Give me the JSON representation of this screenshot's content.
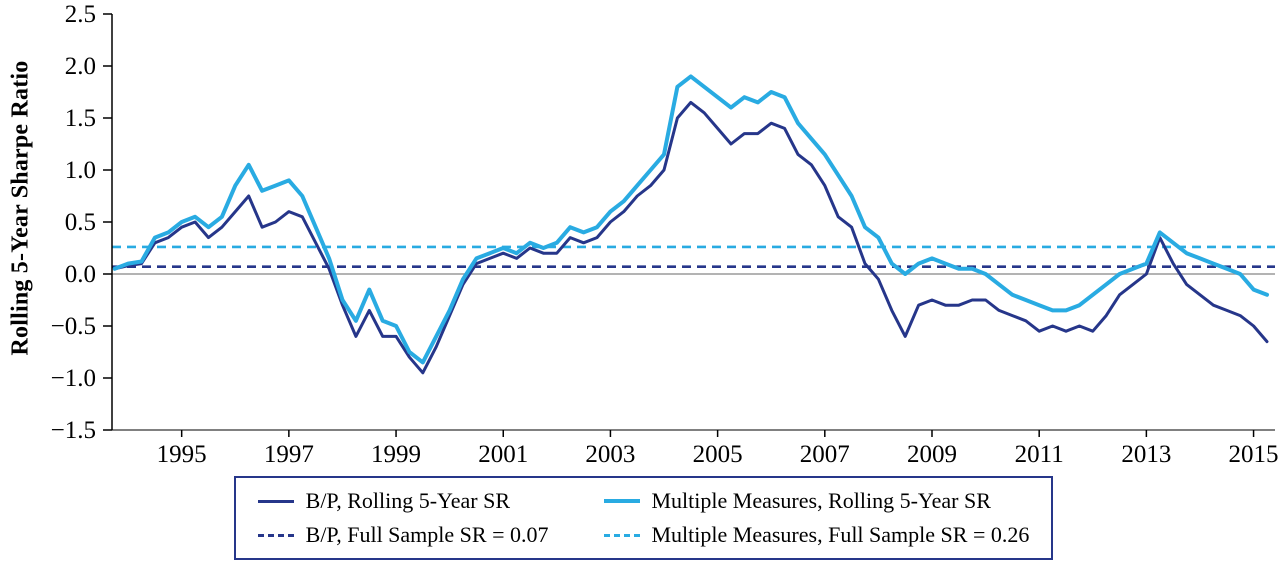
{
  "chart_data": {
    "type": "line",
    "title": "",
    "xlabel": "",
    "ylabel": "Rolling 5-Year Sharpe Ratio",
    "xlim": [
      1993.7,
      2015.4
    ],
    "ylim": [
      -1.5,
      2.5
    ],
    "grid": false,
    "legend_position": "bottom",
    "colors": {
      "navy": "#26368a",
      "cyan": "#29abe2",
      "axis": "#000000",
      "zero_line": "#9a9a9a",
      "legend_border": "#26368a"
    },
    "x_ticks": [
      1995,
      1997,
      1999,
      2001,
      2003,
      2005,
      2007,
      2009,
      2011,
      2013,
      2015
    ],
    "y_ticks": [
      {
        "value": 2.5,
        "label": "2.5"
      },
      {
        "value": 2.0,
        "label": "2.0"
      },
      {
        "value": 1.5,
        "label": "1.5"
      },
      {
        "value": 1.0,
        "label": "1.0"
      },
      {
        "value": 0.5,
        "label": "0.5"
      },
      {
        "value": 0.0,
        "label": "0.0"
      },
      {
        "value": -0.5,
        "label": "−0.5"
      },
      {
        "value": -1.0,
        "label": "−1.0"
      },
      {
        "value": -1.5,
        "label": "−1.5"
      }
    ],
    "x": [
      1993.75,
      1994.0,
      1994.25,
      1994.5,
      1994.75,
      1995.0,
      1995.25,
      1995.5,
      1995.75,
      1996.0,
      1996.25,
      1996.5,
      1996.75,
      1997.0,
      1997.25,
      1997.5,
      1997.75,
      1998.0,
      1998.25,
      1998.5,
      1998.75,
      1999.0,
      1999.25,
      1999.5,
      1999.75,
      2000.0,
      2000.25,
      2000.5,
      2000.75,
      2001.0,
      2001.25,
      2001.5,
      2001.75,
      2002.0,
      2002.25,
      2002.5,
      2002.75,
      2003.0,
      2003.25,
      2003.5,
      2003.75,
      2004.0,
      2004.25,
      2004.5,
      2004.75,
      2005.0,
      2005.25,
      2005.5,
      2005.75,
      2006.0,
      2006.25,
      2006.5,
      2006.75,
      2007.0,
      2007.25,
      2007.5,
      2007.75,
      2008.0,
      2008.25,
      2008.5,
      2008.75,
      2009.0,
      2009.25,
      2009.5,
      2009.75,
      2010.0,
      2010.25,
      2010.5,
      2010.75,
      2011.0,
      2011.25,
      2011.5,
      2011.75,
      2012.0,
      2012.25,
      2012.5,
      2012.75,
      2013.0,
      2013.25,
      2013.5,
      2013.75,
      2014.0,
      2014.25,
      2014.5,
      2014.75,
      2015.0,
      2015.25
    ],
    "series": [
      {
        "name": "B/P, Rolling 5-Year SR",
        "color": "#26368a",
        "style": "solid",
        "width": 3,
        "values": [
          0.05,
          0.08,
          0.1,
          0.3,
          0.35,
          0.45,
          0.5,
          0.35,
          0.45,
          0.6,
          0.75,
          0.45,
          0.5,
          0.6,
          0.55,
          0.3,
          0.05,
          -0.3,
          -0.6,
          -0.35,
          -0.6,
          -0.6,
          -0.8,
          -0.95,
          -0.7,
          -0.4,
          -0.1,
          0.1,
          0.15,
          0.2,
          0.15,
          0.25,
          0.2,
          0.2,
          0.35,
          0.3,
          0.35,
          0.5,
          0.6,
          0.75,
          0.85,
          1.0,
          1.5,
          1.65,
          1.55,
          1.4,
          1.25,
          1.35,
          1.35,
          1.45,
          1.4,
          1.15,
          1.05,
          0.85,
          0.55,
          0.45,
          0.1,
          -0.05,
          -0.35,
          -0.6,
          -0.3,
          -0.25,
          -0.3,
          -0.3,
          -0.25,
          -0.25,
          -0.35,
          -0.4,
          -0.45,
          -0.55,
          -0.5,
          -0.55,
          -0.5,
          -0.55,
          -0.4,
          -0.2,
          -0.1,
          0.0,
          0.35,
          0.1,
          -0.1,
          -0.2,
          -0.3,
          -0.35,
          -0.4,
          -0.5,
          -0.65
        ]
      },
      {
        "name": "Multiple Measures, Rolling 5-Year SR",
        "color": "#29abe2",
        "style": "solid",
        "width": 4,
        "values": [
          0.05,
          0.1,
          0.12,
          0.35,
          0.4,
          0.5,
          0.55,
          0.45,
          0.55,
          0.85,
          1.05,
          0.8,
          0.85,
          0.9,
          0.75,
          0.45,
          0.15,
          -0.25,
          -0.45,
          -0.15,
          -0.45,
          -0.5,
          -0.75,
          -0.85,
          -0.6,
          -0.35,
          -0.05,
          0.15,
          0.2,
          0.25,
          0.2,
          0.3,
          0.25,
          0.3,
          0.45,
          0.4,
          0.45,
          0.6,
          0.7,
          0.85,
          1.0,
          1.15,
          1.8,
          1.9,
          1.8,
          1.7,
          1.6,
          1.7,
          1.65,
          1.75,
          1.7,
          1.45,
          1.3,
          1.15,
          0.95,
          0.75,
          0.45,
          0.35,
          0.1,
          0.0,
          0.1,
          0.15,
          0.1,
          0.05,
          0.05,
          0.0,
          -0.1,
          -0.2,
          -0.25,
          -0.3,
          -0.35,
          -0.35,
          -0.3,
          -0.2,
          -0.1,
          0.0,
          0.05,
          0.1,
          0.4,
          0.3,
          0.2,
          0.15,
          0.1,
          0.05,
          0.0,
          -0.15,
          -0.2
        ]
      }
    ],
    "reference_lines": [
      {
        "name": "B/P, Full Sample SR = 0.07",
        "value": 0.07,
        "color": "#26368a",
        "style": "dashed"
      },
      {
        "name": "Multiple Measures, Full Sample SR = 0.26",
        "value": 0.26,
        "color": "#29abe2",
        "style": "dashed"
      }
    ]
  }
}
